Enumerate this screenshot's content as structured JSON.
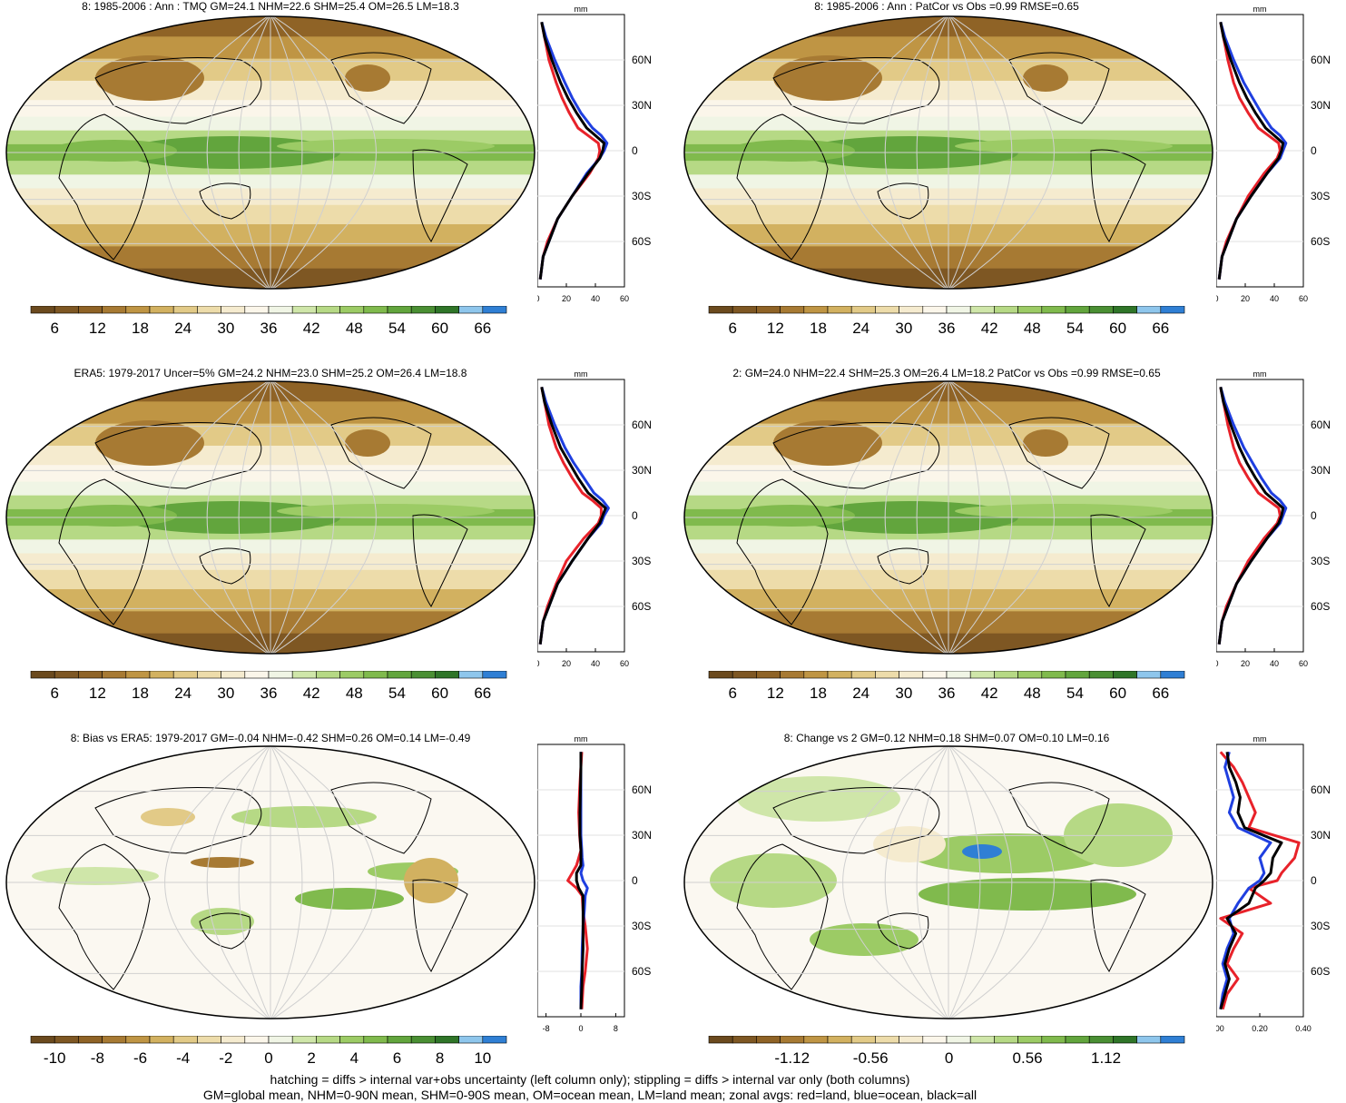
{
  "panels": [
    {
      "title": "8: 1985-2006 : Ann : TMQ GM=24.1 NHM=22.6 SHM=25.4 OM=26.5 LM=18.3",
      "kind": "mean",
      "colorbar_labels": [
        "6",
        "12",
        "18",
        "24",
        "30",
        "36",
        "42",
        "48",
        "54",
        "60",
        "66"
      ],
      "zonal_unit": "mm",
      "zonal_xticks": [
        "0",
        "20",
        "40",
        "60"
      ],
      "zonal_lat_labels": [
        "60N",
        "30N",
        "0",
        "30S",
        "60S"
      ]
    },
    {
      "title": "8: 1985-2006 : Ann : PatCor vs Obs =0.99 RMSE=0.65",
      "kind": "mean",
      "colorbar_labels": [
        "6",
        "12",
        "18",
        "24",
        "30",
        "36",
        "42",
        "48",
        "54",
        "60",
        "66"
      ],
      "zonal_unit": "mm",
      "zonal_xticks": [
        "0",
        "20",
        "40",
        "60"
      ],
      "zonal_lat_labels": [
        "60N",
        "30N",
        "0",
        "30S",
        "60S"
      ]
    },
    {
      "title": "ERA5: 1979-2017 Uncer=5% GM=24.2 NHM=23.0 SHM=25.2 OM=26.4 LM=18.8",
      "kind": "mean",
      "colorbar_labels": [
        "6",
        "12",
        "18",
        "24",
        "30",
        "36",
        "42",
        "48",
        "54",
        "60",
        "66"
      ],
      "zonal_unit": "mm",
      "zonal_xticks": [
        "0",
        "20",
        "40",
        "60"
      ],
      "zonal_lat_labels": [
        "60N",
        "30N",
        "0",
        "30S",
        "60S"
      ]
    },
    {
      "title": "2: GM=24.0 NHM=22.4 SHM=25.3 OM=26.4 LM=18.2 PatCor vs Obs =0.99 RMSE=0.65",
      "kind": "mean",
      "colorbar_labels": [
        "6",
        "12",
        "18",
        "24",
        "30",
        "36",
        "42",
        "48",
        "54",
        "60",
        "66"
      ],
      "zonal_unit": "mm",
      "zonal_xticks": [
        "0",
        "20",
        "40",
        "60"
      ],
      "zonal_lat_labels": [
        "60N",
        "30N",
        "0",
        "30S",
        "60S"
      ]
    },
    {
      "title": "8: Bias vs ERA5: 1979-2017 GM=-0.04 NHM=-0.42 SHM=0.26 OM=0.14 LM=-0.49",
      "kind": "bias",
      "colorbar_labels": [
        "-10",
        "-8",
        "-6",
        "-4",
        "-2",
        "0",
        "2",
        "4",
        "6",
        "8",
        "10"
      ],
      "zonal_unit": "mm",
      "zonal_xticks": [
        "-8",
        "0",
        "8"
      ],
      "zonal_lat_labels": [
        "60N",
        "30N",
        "0",
        "30S",
        "60S"
      ]
    },
    {
      "title": "8: Change vs 2 GM=0.12 NHM=0.18 SHM=0.07 OM=0.10 LM=0.16",
      "kind": "change",
      "colorbar_labels": [
        "-1.12",
        "-0.56",
        "0",
        "0.56",
        "1.12"
      ],
      "zonal_unit": "mm",
      "zonal_xticks": [
        "0.00",
        "0.20",
        "0.40"
      ],
      "zonal_lat_labels": [
        "60N",
        "30N",
        "0",
        "30S",
        "60S"
      ]
    }
  ],
  "footer": {
    "line1": "hatching = diffs > internal var+obs uncertainty (left column only); stippling = diffs > internal var only (both columns)",
    "line2": "GM=global mean, NHM=0-90N mean, SHM=0-90S mean, OM=ocean mean, LM=land mean; zonal avgs: red=land, blue=ocean, black=all"
  },
  "colors": {
    "mean_scale": [
      "#6b4a1e",
      "#7e5723",
      "#8f6326",
      "#a77a33",
      "#bf9544",
      "#d2b160",
      "#e2ca87",
      "#eddcaa",
      "#f5ebcf",
      "#fbf6ea",
      "#f0f5e5",
      "#cfe6a9",
      "#b6d985",
      "#9ccb65",
      "#80ba4d",
      "#62a53d",
      "#4a8f33",
      "#2f7528",
      "#8ec6ec",
      "#2f7fd4"
    ],
    "bias_scale": [
      "#6b4a1e",
      "#7e5723",
      "#8f6326",
      "#a77a33",
      "#bf9544",
      "#d2b160",
      "#e2ca87",
      "#eddcaa",
      "#f5ebcf",
      "#fbf6ea",
      "#f0f5e5",
      "#cfe6a9",
      "#b6d985",
      "#9ccb65",
      "#80ba4d",
      "#62a53d",
      "#4a8f33",
      "#2f7528",
      "#8ec6ec",
      "#2f7fd4"
    ],
    "land": "#e8222a",
    "ocean": "#1f3fe0",
    "all": "#000000"
  },
  "chart_data": [
    {
      "type": "line",
      "panel": 0,
      "xlabel": "mm",
      "xlim": [
        0,
        60
      ],
      "ylim": [
        -90,
        90
      ],
      "y_ticks": [
        60,
        30,
        0,
        -30,
        -60
      ],
      "lat": [
        -85,
        -70,
        -60,
        -45,
        -30,
        -15,
        -5,
        0,
        5,
        10,
        15,
        25,
        35,
        45,
        60,
        75,
        85
      ],
      "series": [
        {
          "name": "land",
          "values": [
            2,
            4,
            7,
            14,
            24,
            36,
            42,
            43,
            42,
            35,
            28,
            22,
            17,
            13,
            8,
            5,
            3
          ]
        },
        {
          "name": "ocean",
          "values": [
            2,
            4,
            8,
            14,
            24,
            34,
            43,
            46,
            48,
            44,
            38,
            30,
            24,
            19,
            12,
            6,
            3
          ]
        },
        {
          "name": "all",
          "values": [
            2,
            4,
            8,
            14,
            24,
            35,
            43,
            45,
            46,
            40,
            34,
            27,
            21,
            16,
            10,
            5,
            3
          ]
        }
      ]
    },
    {
      "type": "line",
      "panel": 1,
      "xlabel": "mm",
      "xlim": [
        0,
        60
      ],
      "ylim": [
        -90,
        90
      ],
      "y_ticks": [
        60,
        30,
        0,
        -30,
        -60
      ],
      "lat": [
        -85,
        -70,
        -60,
        -45,
        -30,
        -15,
        -5,
        0,
        5,
        10,
        15,
        25,
        35,
        45,
        60,
        75,
        85
      ],
      "series": [
        {
          "name": "land",
          "values": [
            2,
            4,
            7,
            14,
            22,
            33,
            42,
            44,
            43,
            36,
            29,
            22,
            16,
            12,
            8,
            5,
            3
          ]
        },
        {
          "name": "ocean",
          "values": [
            2,
            4,
            8,
            14,
            24,
            35,
            44,
            46,
            48,
            44,
            38,
            31,
            25,
            19,
            12,
            6,
            3
          ]
        },
        {
          "name": "all",
          "values": [
            2,
            4,
            8,
            14,
            24,
            35,
            43,
            45,
            46,
            40,
            34,
            27,
            21,
            16,
            10,
            5,
            3
          ]
        }
      ]
    },
    {
      "type": "line",
      "panel": 2,
      "xlabel": "mm",
      "xlim": [
        0,
        60
      ],
      "ylim": [
        -90,
        90
      ],
      "y_ticks": [
        60,
        30,
        0,
        -30,
        -60
      ],
      "lat": [
        -85,
        -70,
        -60,
        -45,
        -30,
        -15,
        -5,
        0,
        5,
        10,
        15,
        25,
        35,
        45,
        60,
        75,
        85
      ],
      "series": [
        {
          "name": "land",
          "values": [
            2,
            4,
            7,
            13,
            20,
            32,
            42,
            44,
            44,
            38,
            31,
            24,
            18,
            13,
            8,
            5,
            3
          ]
        },
        {
          "name": "ocean",
          "values": [
            2,
            4,
            8,
            14,
            24,
            35,
            44,
            46,
            49,
            45,
            39,
            32,
            25,
            19,
            12,
            6,
            3
          ]
        },
        {
          "name": "all",
          "values": [
            2,
            4,
            8,
            14,
            24,
            35,
            43,
            45,
            47,
            41,
            35,
            28,
            22,
            16,
            10,
            5,
            3
          ]
        }
      ]
    },
    {
      "type": "line",
      "panel": 3,
      "xlabel": "mm",
      "xlim": [
        0,
        60
      ],
      "ylim": [
        -90,
        90
      ],
      "y_ticks": [
        60,
        30,
        0,
        -30,
        -60
      ],
      "lat": [
        -85,
        -70,
        -60,
        -45,
        -30,
        -15,
        -5,
        0,
        5,
        10,
        15,
        25,
        35,
        45,
        60,
        75,
        85
      ],
      "series": [
        {
          "name": "land",
          "values": [
            2,
            4,
            7,
            14,
            22,
            33,
            42,
            44,
            43,
            36,
            29,
            22,
            16,
            12,
            8,
            5,
            3
          ]
        },
        {
          "name": "ocean",
          "values": [
            2,
            4,
            8,
            14,
            24,
            35,
            44,
            46,
            48,
            44,
            38,
            31,
            25,
            19,
            12,
            6,
            3
          ]
        },
        {
          "name": "all",
          "values": [
            2,
            4,
            8,
            14,
            24,
            35,
            43,
            45,
            46,
            40,
            34,
            27,
            21,
            16,
            10,
            5,
            3
          ]
        }
      ]
    },
    {
      "type": "line",
      "panel": 4,
      "xlabel": "mm",
      "xlim": [
        -10,
        10
      ],
      "ylim": [
        -90,
        90
      ],
      "y_ticks": [
        60,
        30,
        0,
        -30,
        -60
      ],
      "lat": [
        -85,
        -70,
        -60,
        -45,
        -30,
        -20,
        -10,
        -5,
        0,
        5,
        10,
        15,
        20,
        30,
        45,
        60,
        75,
        85
      ],
      "series": [
        {
          "name": "land",
          "values": [
            0.2,
            0.5,
            1,
            1.5,
            1,
            0.5,
            0.3,
            -1,
            -3,
            -2,
            -1,
            -0.5,
            0,
            -0.3,
            -0.5,
            -0.3,
            0,
            0.2
          ]
        },
        {
          "name": "ocean",
          "values": [
            0,
            0,
            0.2,
            0.3,
            0.5,
            0.8,
            1,
            1.5,
            0.5,
            0,
            0.5,
            0.3,
            0.2,
            0,
            0,
            0,
            0,
            0
          ]
        },
        {
          "name": "all",
          "values": [
            0,
            0.2,
            0.3,
            0.5,
            0.5,
            0.5,
            0.5,
            -0.5,
            -1,
            -1,
            0,
            0,
            0,
            -0.2,
            -0.2,
            -0.1,
            0,
            0
          ]
        }
      ]
    },
    {
      "type": "line",
      "panel": 5,
      "xlabel": "mm",
      "xlim": [
        0,
        0.4
      ],
      "ylim": [
        -90,
        90
      ],
      "y_ticks": [
        60,
        30,
        0,
        -30,
        -60
      ],
      "lat": [
        -85,
        -75,
        -65,
        -55,
        -45,
        -35,
        -25,
        -15,
        -5,
        0,
        5,
        15,
        25,
        35,
        45,
        55,
        65,
        75,
        85
      ],
      "series": [
        {
          "name": "land",
          "values": [
            0.03,
            0.05,
            0.1,
            0.05,
            0.08,
            0.12,
            0.02,
            0.25,
            0.15,
            0.28,
            0.3,
            0.36,
            0.38,
            0.15,
            0.18,
            0.15,
            0.12,
            0.08,
            0.02
          ]
        },
        {
          "name": "ocean",
          "values": [
            0.02,
            0.03,
            0.05,
            0.03,
            0.05,
            0.08,
            0.06,
            0.1,
            0.15,
            0.2,
            0.22,
            0.2,
            0.25,
            0.1,
            0.06,
            0.08,
            0.06,
            0.04,
            0.06
          ]
        },
        {
          "name": "all",
          "values": [
            0.02,
            0.04,
            0.06,
            0.04,
            0.06,
            0.09,
            0.05,
            0.15,
            0.18,
            0.22,
            0.25,
            0.26,
            0.3,
            0.13,
            0.1,
            0.11,
            0.09,
            0.06,
            0.05
          ]
        }
      ]
    }
  ]
}
